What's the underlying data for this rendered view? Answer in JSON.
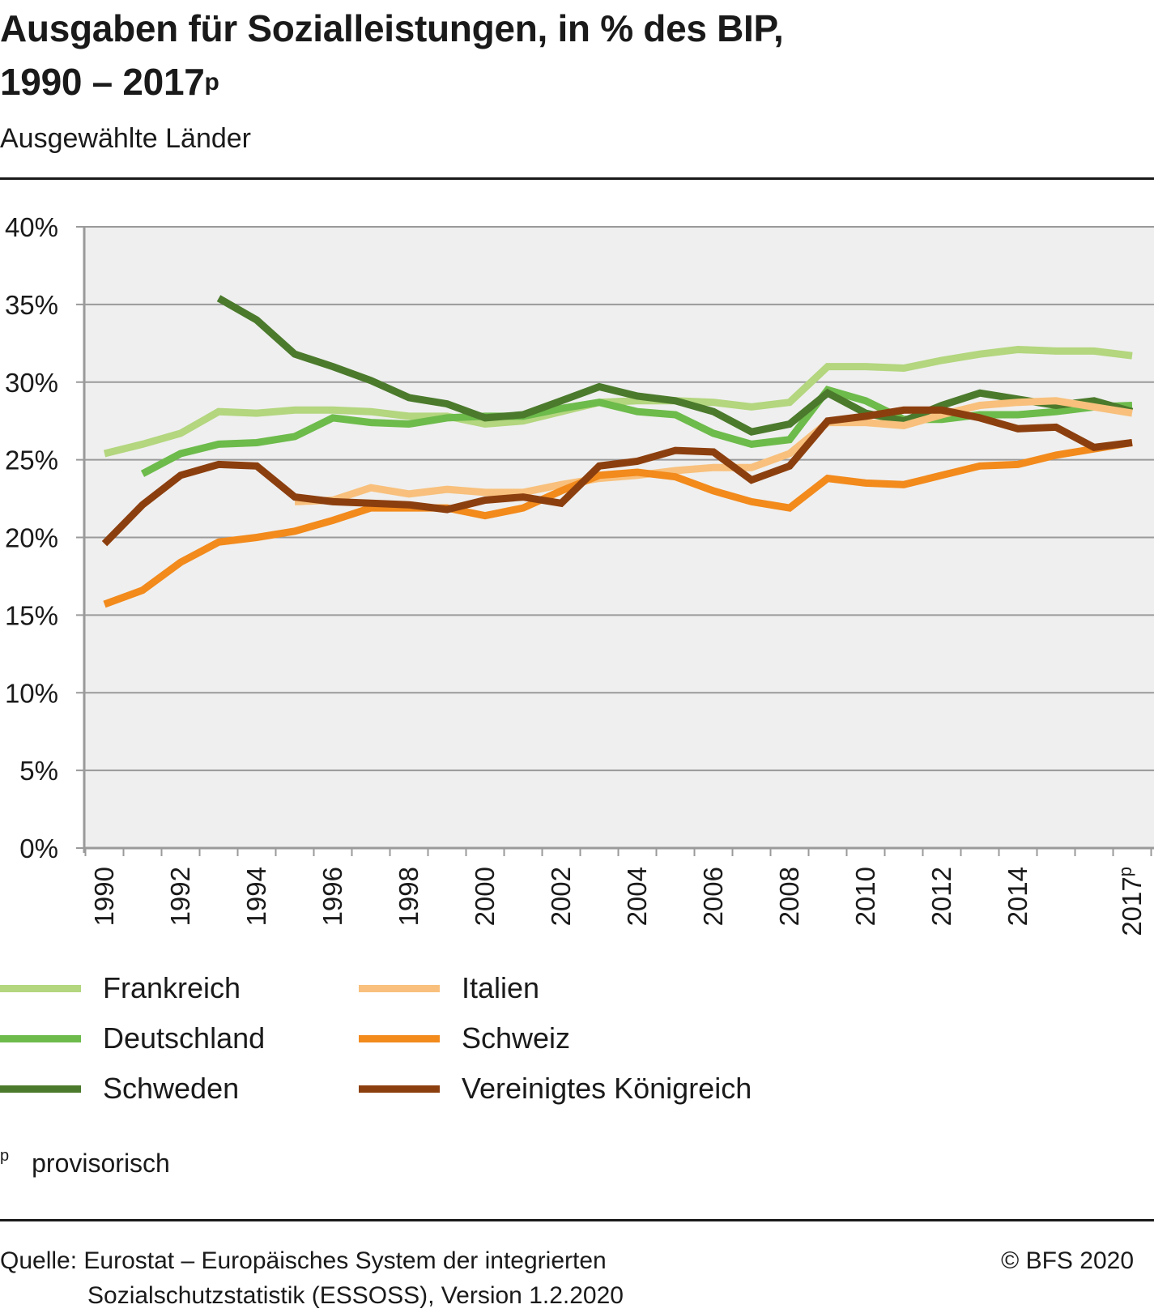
{
  "header": {
    "title_line1": "Ausgaben für Sozialleistungen, in % des BIP,",
    "title_line2": "1990 – 2017",
    "title_sup": "p",
    "subtitle": "Ausgewählte Länder"
  },
  "chart_data": {
    "type": "line",
    "ylim": [
      0,
      40
    ],
    "yticks": [
      0,
      5,
      10,
      15,
      20,
      25,
      30,
      35,
      40
    ],
    "ytick_labels": [
      "0%",
      "5%",
      "10%",
      "15%",
      "20%",
      "25%",
      "30%",
      "35%",
      "40%"
    ],
    "xlim": [
      1990,
      2017
    ],
    "x": [
      1990,
      1991,
      1992,
      1993,
      1994,
      1995,
      1996,
      1997,
      1998,
      1999,
      2000,
      2001,
      2002,
      2003,
      2004,
      2005,
      2006,
      2007,
      2008,
      2009,
      2010,
      2011,
      2012,
      2013,
      2014,
      2015,
      2016,
      2017
    ],
    "xtick_values": [
      1990,
      1992,
      1994,
      1996,
      1998,
      2000,
      2002,
      2004,
      2006,
      2008,
      2010,
      2012,
      2014,
      2017
    ],
    "xtick_labels": [
      "1990",
      "1992",
      "1994",
      "1996",
      "1998",
      "2000",
      "2002",
      "2004",
      "2006",
      "2008",
      "2010",
      "2012",
      "2014",
      "2017"
    ],
    "xtick_sup": {
      "2017": "p"
    },
    "grid": true,
    "series": [
      {
        "name": "Frankreich",
        "color": "#b3d67e",
        "values": [
          25.4,
          26.0,
          26.7,
          28.1,
          28.0,
          28.2,
          28.2,
          28.1,
          27.8,
          27.8,
          27.3,
          27.5,
          28.1,
          28.7,
          28.8,
          28.8,
          28.7,
          28.4,
          28.7,
          31.0,
          31.0,
          30.9,
          31.4,
          31.8,
          32.1,
          32.0,
          32.0,
          31.7
        ]
      },
      {
        "name": "Deutschland",
        "color": "#6dbb4b",
        "values": [
          null,
          24.1,
          25.4,
          26.0,
          26.1,
          26.5,
          27.7,
          27.4,
          27.3,
          27.7,
          27.8,
          27.8,
          28.3,
          28.7,
          28.1,
          27.9,
          26.7,
          26.0,
          26.3,
          29.5,
          28.8,
          27.6,
          27.6,
          27.9,
          27.9,
          28.1,
          28.4,
          28.5
        ]
      },
      {
        "name": "Schweden",
        "color": "#4b7a2c",
        "values": [
          null,
          null,
          null,
          35.4,
          34.0,
          31.8,
          31.0,
          30.1,
          29.0,
          28.6,
          27.7,
          27.9,
          28.8,
          29.7,
          29.1,
          28.8,
          28.1,
          26.8,
          27.3,
          29.3,
          28.0,
          27.5,
          28.5,
          29.3,
          28.9,
          28.5,
          28.8,
          28.1
        ]
      },
      {
        "name": "Italien",
        "color": "#f8c07c",
        "values": [
          null,
          null,
          null,
          null,
          null,
          22.3,
          22.4,
          23.2,
          22.8,
          23.1,
          22.9,
          22.9,
          23.4,
          23.8,
          24.0,
          24.3,
          24.5,
          24.5,
          25.4,
          27.4,
          27.4,
          27.2,
          27.9,
          28.5,
          28.7,
          28.8,
          28.4,
          28.0
        ]
      },
      {
        "name": "Schweiz",
        "color": "#f28a1c",
        "values": [
          15.7,
          16.6,
          18.4,
          19.7,
          20.0,
          20.4,
          21.1,
          21.9,
          21.9,
          21.9,
          21.4,
          21.9,
          23.0,
          24.0,
          24.2,
          23.9,
          23.0,
          22.3,
          21.9,
          23.8,
          23.5,
          23.4,
          24.0,
          24.6,
          24.7,
          25.3,
          25.7,
          26.1
        ]
      },
      {
        "name": "Vereinigtes Königreich",
        "color": "#8c3f0e",
        "values": [
          19.6,
          22.1,
          24.0,
          24.7,
          24.6,
          22.6,
          22.3,
          22.2,
          22.1,
          21.8,
          22.4,
          22.6,
          22.2,
          24.6,
          24.9,
          25.6,
          25.5,
          23.7,
          24.6,
          27.5,
          27.8,
          28.2,
          28.2,
          27.7,
          27.0,
          27.1,
          25.8,
          26.1
        ]
      }
    ]
  },
  "legend": {
    "items": [
      {
        "label": "Frankreich",
        "color": "#b3d67e"
      },
      {
        "label": "Deutschland",
        "color": "#6dbb4b"
      },
      {
        "label": "Schweden",
        "color": "#4b7a2c"
      },
      {
        "label": "Italien",
        "color": "#f8c07c"
      },
      {
        "label": "Schweiz",
        "color": "#f28a1c"
      },
      {
        "label": "Vereinigtes Königreich",
        "color": "#8c3f0e"
      }
    ]
  },
  "footnote": {
    "mark": "p",
    "text": "provisorisch"
  },
  "source": {
    "line1": "Quelle: Eurostat – Europäisches System der integrierten",
    "line2": "Sozialschutzstatistik (ESSOSS), Version 1.2.2020"
  },
  "copyright": "© BFS 2020"
}
